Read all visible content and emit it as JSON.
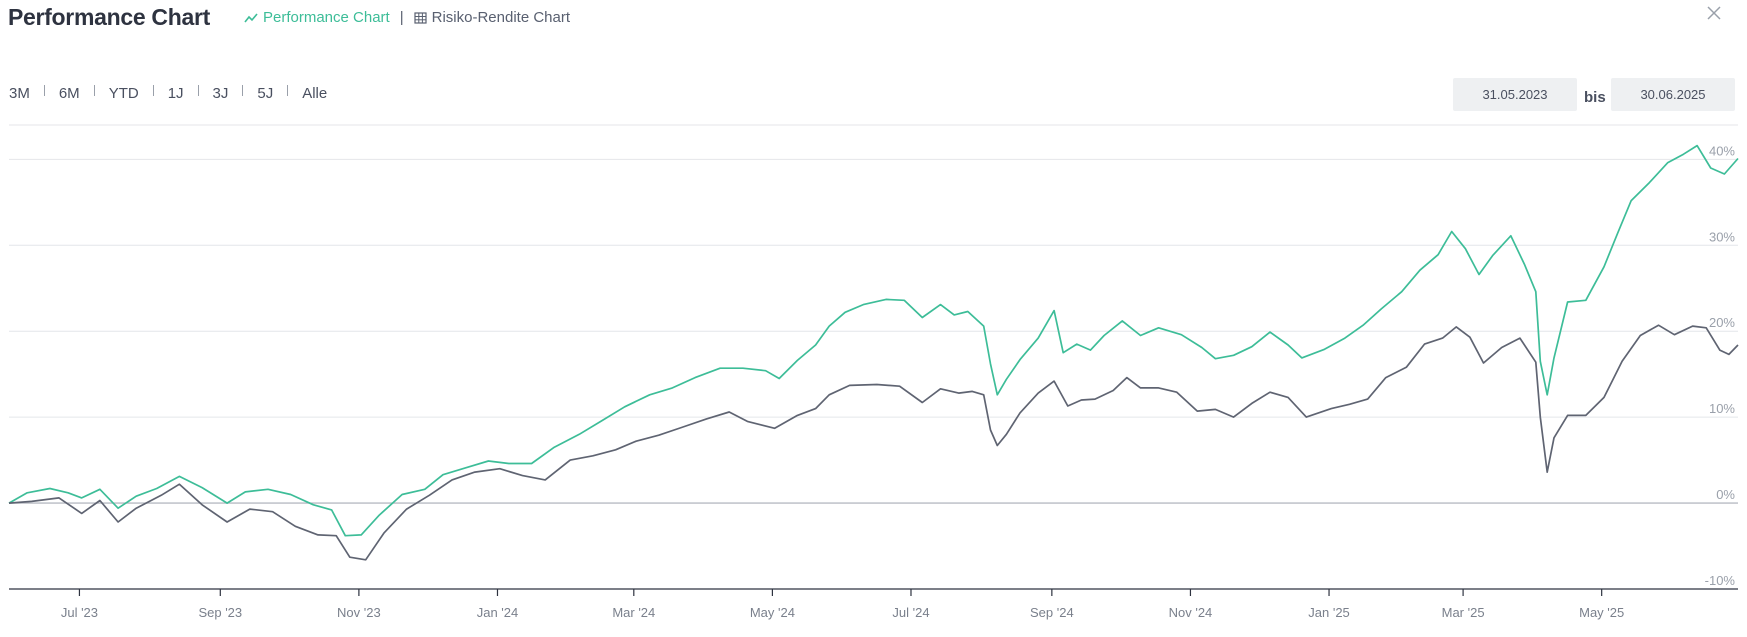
{
  "header": {
    "title": "Performance Chart",
    "tabs": [
      {
        "label": "Performance Chart",
        "icon": "trend-line-icon",
        "active": true
      },
      {
        "label": "Risiko-Rendite Chart",
        "icon": "grid-table-icon",
        "active": false
      }
    ],
    "close_icon": "close-icon"
  },
  "controls": {
    "ranges": [
      "3M",
      "6M",
      "YTD",
      "1J",
      "3J",
      "5J",
      "Alle"
    ],
    "date_from": "31.05.2023",
    "date_separator": "bis",
    "date_to": "30.06.2025"
  },
  "colors": {
    "series_green": "#3dbd98",
    "series_gray": "#5f6472",
    "grid": "#e4e6ea",
    "zero_line": "#b8bcc4",
    "axis": "#2e3340"
  },
  "chart_data": {
    "type": "line",
    "ylim": [
      -10,
      44
    ],
    "xlim": [
      "2023-05-31",
      "2025-06-30"
    ],
    "yticks": [
      -10,
      0,
      10,
      20,
      30,
      40
    ],
    "ytick_labels": [
      "-10%",
      "0%",
      "10%",
      "20%",
      "30%",
      "40%"
    ],
    "xticks": [
      "2023-07-01",
      "2023-09-01",
      "2023-11-01",
      "2024-01-01",
      "2024-03-01",
      "2024-05-01",
      "2024-07-01",
      "2024-09-01",
      "2024-11-01",
      "2025-01-01",
      "2025-03-01",
      "2025-05-01"
    ],
    "xtick_labels": [
      "Jul '23",
      "Sep '23",
      "Nov '23",
      "Jan '24",
      "Mar '24",
      "May '24",
      "Jul '24",
      "Sep '24",
      "Nov '24",
      "Jan '25",
      "Mar '25",
      "May '25"
    ],
    "grid": true,
    "legend": "none",
    "series": [
      {
        "color": "#3dbd98",
        "points": [
          [
            "2023-05-31",
            0.0
          ],
          [
            "2023-06-08",
            1.2
          ],
          [
            "2023-06-18",
            1.7
          ],
          [
            "2023-06-26",
            1.2
          ],
          [
            "2023-07-02",
            0.6
          ],
          [
            "2023-07-10",
            1.6
          ],
          [
            "2023-07-18",
            -0.6
          ],
          [
            "2023-07-26",
            0.8
          ],
          [
            "2023-08-04",
            1.7
          ],
          [
            "2023-08-14",
            3.1
          ],
          [
            "2023-08-24",
            1.8
          ],
          [
            "2023-09-04",
            0.0
          ],
          [
            "2023-09-12",
            1.3
          ],
          [
            "2023-09-22",
            1.6
          ],
          [
            "2023-10-02",
            1.0
          ],
          [
            "2023-10-12",
            -0.2
          ],
          [
            "2023-10-20",
            -0.8
          ],
          [
            "2023-10-26",
            -3.8
          ],
          [
            "2023-11-02",
            -3.7
          ],
          [
            "2023-11-10",
            -1.4
          ],
          [
            "2023-11-20",
            1.0
          ],
          [
            "2023-11-30",
            1.6
          ],
          [
            "2023-12-08",
            3.3
          ],
          [
            "2023-12-18",
            4.1
          ],
          [
            "2023-12-28",
            4.9
          ],
          [
            "2024-01-06",
            4.6
          ],
          [
            "2024-01-16",
            4.6
          ],
          [
            "2024-01-26",
            6.5
          ],
          [
            "2024-02-06",
            8.0
          ],
          [
            "2024-02-16",
            9.6
          ],
          [
            "2024-02-26",
            11.2
          ],
          [
            "2024-03-08",
            12.6
          ],
          [
            "2024-03-18",
            13.4
          ],
          [
            "2024-03-28",
            14.6
          ],
          [
            "2024-04-08",
            15.7
          ],
          [
            "2024-04-18",
            15.7
          ],
          [
            "2024-04-28",
            15.4
          ],
          [
            "2024-05-04",
            14.5
          ],
          [
            "2024-05-12",
            16.6
          ],
          [
            "2024-05-20",
            18.4
          ],
          [
            "2024-05-26",
            20.6
          ],
          [
            "2024-06-02",
            22.2
          ],
          [
            "2024-06-10",
            23.1
          ],
          [
            "2024-06-20",
            23.7
          ],
          [
            "2024-06-28",
            23.6
          ],
          [
            "2024-07-06",
            21.6
          ],
          [
            "2024-07-14",
            23.1
          ],
          [
            "2024-07-20",
            21.9
          ],
          [
            "2024-07-26",
            22.3
          ],
          [
            "2024-08-02",
            20.6
          ],
          [
            "2024-08-05",
            16.2
          ],
          [
            "2024-08-08",
            12.6
          ],
          [
            "2024-08-12",
            14.4
          ],
          [
            "2024-08-18",
            16.7
          ],
          [
            "2024-08-26",
            19.2
          ],
          [
            "2024-09-02",
            22.4
          ],
          [
            "2024-09-06",
            17.5
          ],
          [
            "2024-09-12",
            18.5
          ],
          [
            "2024-09-18",
            17.8
          ],
          [
            "2024-09-24",
            19.5
          ],
          [
            "2024-10-02",
            21.2
          ],
          [
            "2024-10-10",
            19.5
          ],
          [
            "2024-10-18",
            20.4
          ],
          [
            "2024-10-28",
            19.6
          ],
          [
            "2024-11-06",
            18.1
          ],
          [
            "2024-11-12",
            16.8
          ],
          [
            "2024-11-20",
            17.2
          ],
          [
            "2024-11-28",
            18.2
          ],
          [
            "2024-12-06",
            19.9
          ],
          [
            "2024-12-14",
            18.4
          ],
          [
            "2024-12-20",
            16.9
          ],
          [
            "2024-12-30",
            17.9
          ],
          [
            "2025-01-08",
            19.2
          ],
          [
            "2025-01-16",
            20.7
          ],
          [
            "2025-01-24",
            22.6
          ],
          [
            "2025-02-02",
            24.6
          ],
          [
            "2025-02-10",
            27.1
          ],
          [
            "2025-02-18",
            28.9
          ],
          [
            "2025-02-24",
            31.6
          ],
          [
            "2025-03-02",
            29.6
          ],
          [
            "2025-03-08",
            26.6
          ],
          [
            "2025-03-14",
            28.8
          ],
          [
            "2025-03-22",
            31.1
          ],
          [
            "2025-03-28",
            27.8
          ],
          [
            "2025-04-02",
            24.6
          ],
          [
            "2025-04-04",
            16.5
          ],
          [
            "2025-04-07",
            12.6
          ],
          [
            "2025-04-10",
            16.9
          ],
          [
            "2025-04-16",
            23.4
          ],
          [
            "2025-04-24",
            23.6
          ],
          [
            "2025-05-02",
            27.5
          ],
          [
            "2025-05-08",
            31.4
          ],
          [
            "2025-05-14",
            35.2
          ],
          [
            "2025-05-22",
            37.3
          ],
          [
            "2025-05-30",
            39.6
          ],
          [
            "2025-06-06",
            40.6
          ],
          [
            "2025-06-12",
            41.6
          ],
          [
            "2025-06-18",
            39.0
          ],
          [
            "2025-06-24",
            38.3
          ],
          [
            "2025-06-30",
            40.1
          ]
        ]
      },
      {
        "color": "#5f6472",
        "points": [
          [
            "2023-05-31",
            0.0
          ],
          [
            "2023-06-10",
            0.2
          ],
          [
            "2023-06-22",
            0.6
          ],
          [
            "2023-07-02",
            -1.2
          ],
          [
            "2023-07-10",
            0.3
          ],
          [
            "2023-07-18",
            -2.2
          ],
          [
            "2023-07-26",
            -0.6
          ],
          [
            "2023-08-06",
            0.9
          ],
          [
            "2023-08-14",
            2.2
          ],
          [
            "2023-08-24",
            -0.2
          ],
          [
            "2023-09-04",
            -2.2
          ],
          [
            "2023-09-14",
            -0.7
          ],
          [
            "2023-09-24",
            -1.0
          ],
          [
            "2023-10-04",
            -2.7
          ],
          [
            "2023-10-14",
            -3.7
          ],
          [
            "2023-10-22",
            -3.8
          ],
          [
            "2023-10-28",
            -6.3
          ],
          [
            "2023-11-04",
            -6.6
          ],
          [
            "2023-11-12",
            -3.5
          ],
          [
            "2023-11-22",
            -0.7
          ],
          [
            "2023-12-02",
            0.9
          ],
          [
            "2023-12-12",
            2.7
          ],
          [
            "2023-12-22",
            3.6
          ],
          [
            "2024-01-02",
            4.0
          ],
          [
            "2024-01-12",
            3.2
          ],
          [
            "2024-01-22",
            2.7
          ],
          [
            "2024-02-02",
            5.0
          ],
          [
            "2024-02-12",
            5.5
          ],
          [
            "2024-02-22",
            6.2
          ],
          [
            "2024-03-02",
            7.2
          ],
          [
            "2024-03-12",
            7.9
          ],
          [
            "2024-03-22",
            8.8
          ],
          [
            "2024-04-02",
            9.8
          ],
          [
            "2024-04-12",
            10.6
          ],
          [
            "2024-04-20",
            9.5
          ],
          [
            "2024-05-02",
            8.7
          ],
          [
            "2024-05-12",
            10.2
          ],
          [
            "2024-05-20",
            11.0
          ],
          [
            "2024-05-26",
            12.6
          ],
          [
            "2024-06-04",
            13.7
          ],
          [
            "2024-06-16",
            13.8
          ],
          [
            "2024-06-26",
            13.6
          ],
          [
            "2024-07-06",
            11.7
          ],
          [
            "2024-07-14",
            13.3
          ],
          [
            "2024-07-22",
            12.8
          ],
          [
            "2024-07-28",
            13.0
          ],
          [
            "2024-08-02",
            12.6
          ],
          [
            "2024-08-05",
            8.5
          ],
          [
            "2024-08-08",
            6.7
          ],
          [
            "2024-08-12",
            8.0
          ],
          [
            "2024-08-18",
            10.5
          ],
          [
            "2024-08-26",
            12.8
          ],
          [
            "2024-09-02",
            14.2
          ],
          [
            "2024-09-08",
            11.3
          ],
          [
            "2024-09-14",
            12.0
          ],
          [
            "2024-09-20",
            12.1
          ],
          [
            "2024-09-28",
            13.1
          ],
          [
            "2024-10-04",
            14.6
          ],
          [
            "2024-10-10",
            13.4
          ],
          [
            "2024-10-18",
            13.4
          ],
          [
            "2024-10-26",
            12.9
          ],
          [
            "2024-11-04",
            10.7
          ],
          [
            "2024-11-12",
            10.9
          ],
          [
            "2024-11-20",
            10.0
          ],
          [
            "2024-11-28",
            11.6
          ],
          [
            "2024-12-06",
            12.9
          ],
          [
            "2024-12-14",
            12.3
          ],
          [
            "2024-12-22",
            10.0
          ],
          [
            "2025-01-02",
            11.0
          ],
          [
            "2025-01-10",
            11.5
          ],
          [
            "2025-01-18",
            12.1
          ],
          [
            "2025-01-26",
            14.6
          ],
          [
            "2025-02-04",
            15.8
          ],
          [
            "2025-02-12",
            18.5
          ],
          [
            "2025-02-20",
            19.2
          ],
          [
            "2025-02-26",
            20.5
          ],
          [
            "2025-03-04",
            19.3
          ],
          [
            "2025-03-10",
            16.3
          ],
          [
            "2025-03-18",
            18.1
          ],
          [
            "2025-03-26",
            19.2
          ],
          [
            "2025-04-02",
            16.4
          ],
          [
            "2025-04-04",
            10.0
          ],
          [
            "2025-04-07",
            3.6
          ],
          [
            "2025-04-10",
            7.6
          ],
          [
            "2025-04-16",
            10.2
          ],
          [
            "2025-04-24",
            10.2
          ],
          [
            "2025-05-02",
            12.3
          ],
          [
            "2025-05-10",
            16.5
          ],
          [
            "2025-05-18",
            19.5
          ],
          [
            "2025-05-26",
            20.7
          ],
          [
            "2025-06-02",
            19.6
          ],
          [
            "2025-06-10",
            20.6
          ],
          [
            "2025-06-16",
            20.4
          ],
          [
            "2025-06-22",
            17.8
          ],
          [
            "2025-06-26",
            17.3
          ],
          [
            "2025-06-30",
            18.4
          ]
        ]
      }
    ]
  }
}
